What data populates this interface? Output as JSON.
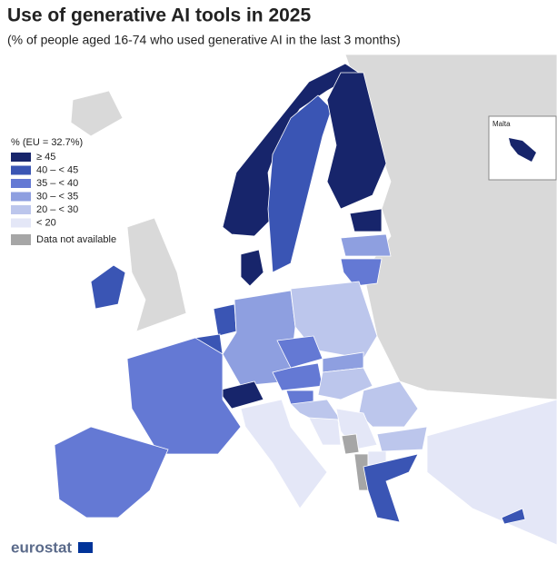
{
  "header": {
    "title": "Use of generative AI tools in 2025",
    "subtitle": "(% of people aged 16-74 who used generative AI in the last 3 months)"
  },
  "legend": {
    "title": "% (EU = 32.7%)",
    "items": [
      {
        "label": "≥ 45",
        "color": "#17256b"
      },
      {
        "label": "40 – < 45",
        "color": "#3a55b4"
      },
      {
        "label": "35 – < 40",
        "color": "#6479d4"
      },
      {
        "label": "30 – < 35",
        "color": "#8e9fe0"
      },
      {
        "label": "20 – < 30",
        "color": "#bcc6ec"
      },
      {
        "label": "< 20",
        "color": "#e4e7f7"
      }
    ],
    "not_available": {
      "label": "Data not available",
      "color": "#a6a6a6"
    }
  },
  "inset": {
    "label": "Malta"
  },
  "footer": {
    "logo": "eurostat"
  }
}
